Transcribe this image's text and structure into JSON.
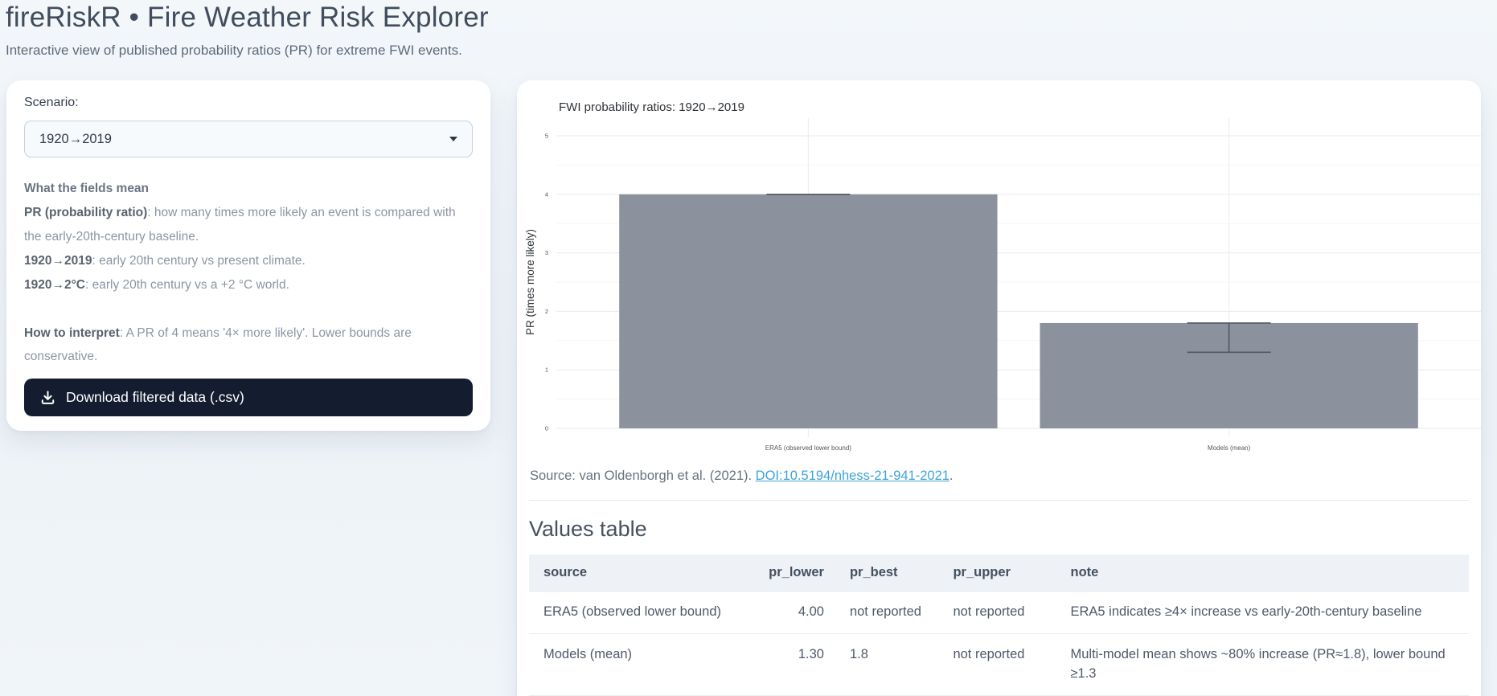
{
  "header": {
    "title": "fireRiskR • Fire Weather Risk Explorer",
    "subtitle": "Interactive view of published probability ratios (PR) for extreme FWI events."
  },
  "sidebar": {
    "scenario_label": "Scenario:",
    "scenario_value": "1920→2019",
    "help": {
      "heading": "What the fields mean",
      "lines": [
        {
          "bold": "PR (probability ratio)",
          "text": ": how many times more likely an event is compared with the early-20th-century baseline."
        },
        {
          "bold": "1920→2019",
          "text": ": early 20th century vs present climate."
        },
        {
          "bold": "1920→2°C",
          "text": ": early 20th century vs a +2 °C world."
        }
      ]
    },
    "interpret": {
      "bold": "How to interpret",
      "text": ": A PR of 4 means '4× more likely'. Lower bounds are conservative."
    },
    "download_label": "Download filtered data (.csv)"
  },
  "chart": {
    "title": "FWI probability ratios: 1920→2019",
    "source_prefix": "Source: van Oldenborgh et al. (2021). ",
    "source_link": "DOI:10.5194/nhess-21-941-2021",
    "source_suffix": "."
  },
  "chart_data": {
    "type": "bar",
    "title": "FWI probability ratios: 1920→2019",
    "categories": [
      "ERA5 (observed lower bound)",
      "Models (mean)"
    ],
    "values": [
      4.0,
      1.8
    ],
    "error_bars": [
      {
        "low": 4.0,
        "high": 4.0
      },
      {
        "low": 1.3,
        "high": 1.8
      }
    ],
    "xlabel": "",
    "ylabel": "PR (times more likely)",
    "ylim": [
      0,
      5
    ],
    "ytick_step": 1,
    "minor_step": 0.5,
    "grid": true,
    "legend": false,
    "bar_color": "#8c929d",
    "error_color": "#4f586a"
  },
  "values_table": {
    "heading": "Values table",
    "columns": [
      "source",
      "pr_lower",
      "pr_best",
      "pr_upper",
      "note"
    ],
    "rows": [
      [
        "ERA5 (observed lower bound)",
        "4.00",
        "not reported",
        "not reported",
        "ERA5 indicates ≥4× increase vs early-20th-century baseline"
      ],
      [
        "Models (mean)",
        "1.30",
        "1.8",
        "not reported",
        "Multi-model mean shows ~80% increase (PR≈1.8), lower bound ≥1.3"
      ]
    ]
  }
}
